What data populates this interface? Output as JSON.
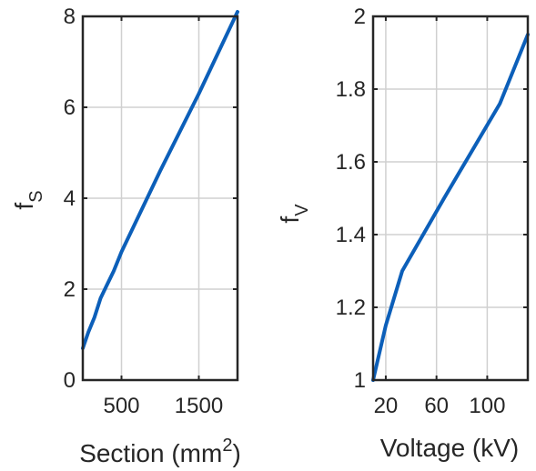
{
  "chart_data": [
    {
      "type": "line",
      "xlabel": "Section (mm",
      "xlabel_sup": "2",
      "xlabel_end": ")",
      "ylabel": "f",
      "ylabel_sub": "S",
      "xlim": [
        0,
        2000
      ],
      "ylim": [
        0,
        8
      ],
      "grid": true,
      "xticks": [
        500,
        1500
      ],
      "xtick_labels": [
        "500",
        "1500"
      ],
      "yticks": [
        0,
        2,
        4,
        6,
        8
      ],
      "ytick_labels": [
        "0",
        "2",
        "4",
        "6",
        "8"
      ],
      "series": [
        {
          "color": "#0c5fb9",
          "x": [
            0,
            70,
            150,
            230,
            300,
            400,
            500,
            1000,
            1500,
            2000
          ],
          "y": [
            0.7,
            1.05,
            1.38,
            1.8,
            2.05,
            2.4,
            2.82,
            4.6,
            6.3,
            8.1
          ]
        }
      ]
    },
    {
      "type": "line",
      "xlabel": "Voltage (kV)",
      "ylabel": "f",
      "ylabel_sub": "V",
      "xlim": [
        10,
        132
      ],
      "ylim": [
        1,
        2
      ],
      "grid": true,
      "xticks": [
        20,
        60,
        100
      ],
      "xtick_labels": [
        "20",
        "60",
        "100"
      ],
      "yticks": [
        1,
        1.2,
        1.4,
        1.6,
        1.8,
        2
      ],
      "ytick_labels": [
        "1",
        "1.2",
        "1.4",
        "1.6",
        "1.8",
        "2"
      ],
      "series": [
        {
          "color": "#0c5fb9",
          "x": [
            10,
            20,
            33,
            66,
            110,
            132
          ],
          "y": [
            1.0,
            1.15,
            1.3,
            1.5,
            1.76,
            1.95
          ]
        }
      ]
    }
  ]
}
